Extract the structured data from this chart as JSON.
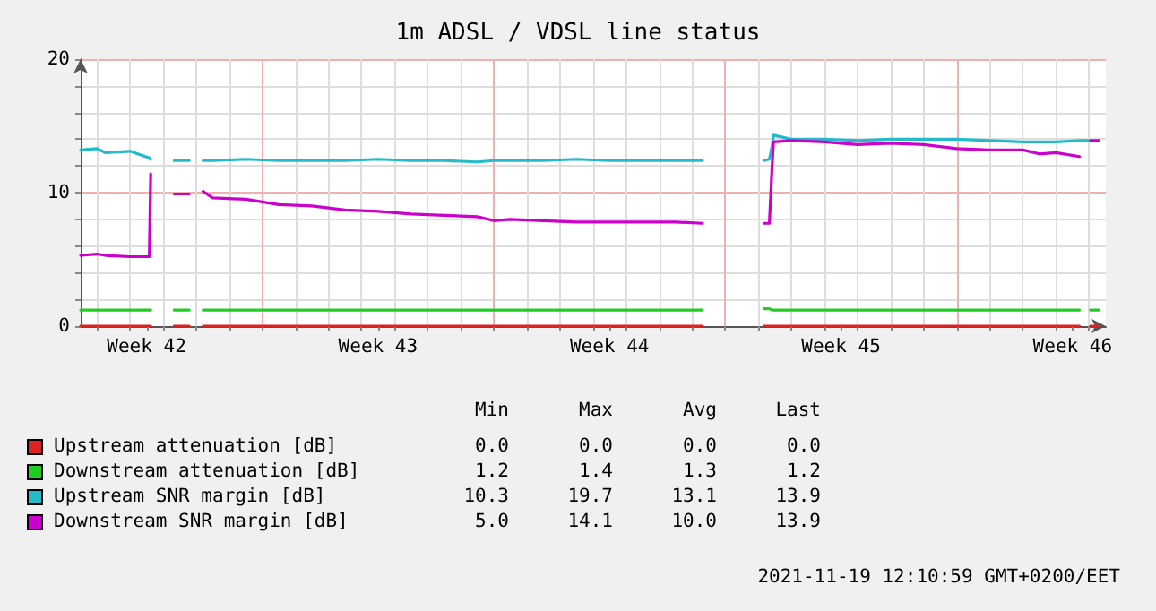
{
  "chart_data": {
    "type": "line",
    "title": "1m ADSL / VDSL line status",
    "x": [
      "2021-10-19T12:10",
      "2021-10-20T00:00",
      "2021-10-20T06:00",
      "2021-10-21T00:00",
      "2021-10-21T14:00",
      "2021-10-21T15:00",
      "2021-10-22T02:00",
      "2021-10-22T08:00",
      "2021-10-22T19:00",
      "2021-10-23T00:00",
      "2021-10-23T05:00",
      "2021-10-23T12:00",
      "2021-10-24T12:00",
      "2021-10-25T12:00",
      "2021-10-26T12:00",
      "2021-10-27T12:00",
      "2021-10-28T12:00",
      "2021-10-29T12:00",
      "2021-10-30T12:00",
      "2021-10-31T12:00",
      "2021-11-01T00:00",
      "2021-11-01T12:00",
      "2021-11-02T12:00",
      "2021-11-03T12:00",
      "2021-11-04T12:00",
      "2021-11-05T12:00",
      "2021-11-06T12:00",
      "2021-11-07T07:30",
      "2021-11-08T00:00",
      "2021-11-09T04:00",
      "2021-11-09T08:00",
      "2021-11-09T10:00",
      "2021-11-09T11:00",
      "2021-11-10T00:00",
      "2021-11-11T00:00",
      "2021-11-12T00:00",
      "2021-11-13T00:00",
      "2021-11-14T00:00",
      "2021-11-15T00:00",
      "2021-11-16T00:00",
      "2021-11-17T00:00",
      "2021-11-17T12:00",
      "2021-11-18T00:00",
      "2021-11-18T17:00",
      "2021-11-19T00:00",
      "2021-11-19T01:00",
      "2021-11-19T07:00"
    ],
    "series": [
      {
        "name": "Upstream attenuation [dB]",
        "color": "#dd2222",
        "values": [
          0,
          0,
          0,
          0,
          0,
          0,
          null,
          0,
          0,
          null,
          0,
          0,
          0,
          0,
          0,
          0,
          0,
          0,
          0,
          0,
          0,
          0,
          0,
          0,
          0,
          0,
          0,
          0,
          null,
          0,
          0,
          0,
          0,
          0,
          0,
          0,
          0,
          0,
          0,
          0,
          0,
          0,
          0,
          0,
          null,
          0,
          0
        ]
      },
      {
        "name": "Downstream attenuation [dB]",
        "color": "#22cc22",
        "values": [
          1.2,
          1.2,
          1.2,
          1.2,
          1.2,
          1.2,
          null,
          1.2,
          1.2,
          null,
          1.2,
          1.2,
          1.2,
          1.2,
          1.2,
          1.2,
          1.2,
          1.2,
          1.2,
          1.2,
          1.2,
          1.2,
          1.2,
          1.2,
          1.2,
          1.2,
          1.2,
          1.2,
          null,
          1.3,
          1.3,
          1.2,
          1.2,
          1.2,
          1.2,
          1.2,
          1.2,
          1.2,
          1.2,
          1.2,
          1.2,
          1.2,
          1.2,
          1.2,
          null,
          1.2,
          1.2
        ]
      },
      {
        "name": "Upstream SNR margin [dB]",
        "color": "#22bbcc",
        "values": [
          13.2,
          13.3,
          13.0,
          13.1,
          12.6,
          12.5,
          null,
          12.4,
          12.4,
          null,
          12.4,
          12.4,
          12.5,
          12.4,
          12.4,
          12.4,
          12.5,
          12.4,
          12.4,
          12.3,
          12.4,
          12.4,
          12.4,
          12.5,
          12.4,
          12.4,
          12.4,
          12.4,
          null,
          12.4,
          12.5,
          13.5,
          14.3,
          14.0,
          14.0,
          13.9,
          14.0,
          14.0,
          14.0,
          13.9,
          13.8,
          13.8,
          13.8,
          13.9,
          13.9,
          null,
          null
        ]
      },
      {
        "name": "Downstream SNR margin [dB]",
        "color": "#cc00cc",
        "values": [
          5.3,
          5.4,
          5.3,
          5.2,
          5.2,
          11.4,
          null,
          9.9,
          9.9,
          null,
          10.1,
          9.6,
          9.5,
          9.1,
          9.0,
          8.7,
          8.6,
          8.4,
          8.3,
          8.2,
          7.9,
          8.0,
          7.9,
          7.8,
          7.8,
          7.8,
          7.8,
          7.7,
          null,
          7.7,
          7.7,
          12.0,
          13.8,
          13.9,
          13.8,
          13.6,
          13.7,
          13.6,
          13.3,
          13.2,
          13.2,
          12.9,
          13.0,
          12.7,
          null,
          13.9,
          13.9
        ]
      }
    ],
    "xlim": [
      "2021-10-19T12:10",
      "2021-11-19T12:10"
    ],
    "xticks": [
      {
        "value": "2021-10-20",
        "label": null
      },
      {
        "value": "2021-10-21",
        "label": null
      },
      {
        "value": "2021-10-21T12:00",
        "label": "Week 42"
      },
      {
        "value": "2021-10-22",
        "label": null
      },
      {
        "value": "2021-10-23",
        "label": null
      },
      {
        "value": "2021-10-24",
        "label": null
      },
      {
        "value": "2021-10-25",
        "label": null
      },
      {
        "value": "2021-10-26",
        "label": null
      },
      {
        "value": "2021-10-27",
        "label": null
      },
      {
        "value": "2021-10-28",
        "label": null
      },
      {
        "value": "2021-10-28T12:00",
        "label": "Week 43"
      },
      {
        "value": "2021-10-29",
        "label": null
      },
      {
        "value": "2021-10-30",
        "label": null
      },
      {
        "value": "2021-10-31",
        "label": null
      },
      {
        "value": "2021-11-01",
        "label": null
      },
      {
        "value": "2021-11-02",
        "label": null
      },
      {
        "value": "2021-11-03",
        "label": null
      },
      {
        "value": "2021-11-04",
        "label": null
      },
      {
        "value": "2021-11-04T12:00",
        "label": "Week 44"
      },
      {
        "value": "2021-11-05",
        "label": null
      },
      {
        "value": "2021-11-06",
        "label": null
      },
      {
        "value": "2021-11-07",
        "label": null
      },
      {
        "value": "2021-11-08",
        "label": null
      },
      {
        "value": "2021-11-09",
        "label": null
      },
      {
        "value": "2021-11-10",
        "label": null
      },
      {
        "value": "2021-11-11",
        "label": null
      },
      {
        "value": "2021-11-11T12:00",
        "label": "Week 45"
      },
      {
        "value": "2021-11-12",
        "label": null
      },
      {
        "value": "2021-11-13",
        "label": null
      },
      {
        "value": "2021-11-14",
        "label": null
      },
      {
        "value": "2021-11-15",
        "label": null
      },
      {
        "value": "2021-11-16",
        "label": null
      },
      {
        "value": "2021-11-17",
        "label": null
      },
      {
        "value": "2021-11-18",
        "label": null
      },
      {
        "value": "2021-11-18T12:00",
        "label": "Week 46"
      },
      {
        "value": "2021-11-19",
        "label": null
      }
    ],
    "ylim": [
      0,
      20
    ],
    "yticks": [
      0,
      {
        "value": 2,
        "label": null
      },
      {
        "value": 4,
        "label": null
      },
      {
        "value": 6,
        "label": null
      },
      {
        "value": 8,
        "label": null
      },
      10,
      {
        "value": 12,
        "label": null
      },
      {
        "value": 14,
        "label": null
      },
      {
        "value": 16,
        "label": null
      },
      {
        "value": 18,
        "label": null
      },
      20
    ],
    "grid": true,
    "legend": "bottom",
    "marker": "none",
    "line_style": "solid",
    "annotations": [
      "Min",
      "Max",
      "Avg",
      "Last",
      "0.0",
      "0.0",
      "0.0",
      "0.0",
      "1.2",
      "1.4",
      "1.3",
      "1.2",
      "10.3",
      "19.7",
      "13.1",
      "13.9",
      "5.0",
      "14.1",
      "10.0",
      "13.9",
      "2021-11-19 12:10:59 GMT+0200/EET"
    ]
  }
}
